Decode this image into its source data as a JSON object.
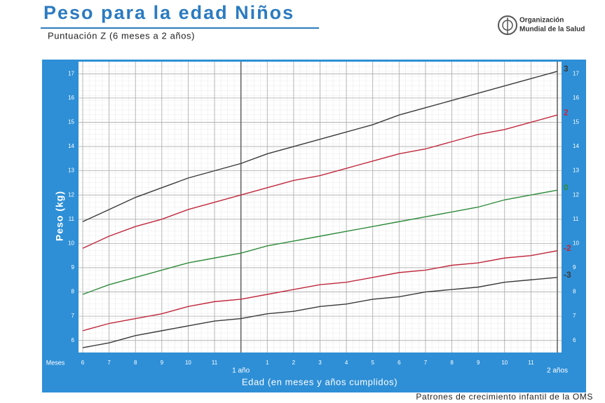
{
  "chart_data": {
    "type": "line",
    "title": "Peso para la edad Niños",
    "subtitle": "Puntuación Z (6 meses a 2 años)",
    "logo_text": [
      "Organización",
      "Mundial de la Salud"
    ],
    "y_label": "Peso (kg)",
    "x_label": "Edad (en meses y años cumplidos)",
    "x_unit_label": "Meses",
    "source": "Patrones de crecimiento infantil de la OMS",
    "x": [
      6,
      7,
      8,
      9,
      10,
      11,
      12,
      13,
      14,
      15,
      16,
      17,
      18,
      19,
      20,
      21,
      22,
      23,
      24
    ],
    "xlim": [
      6,
      24
    ],
    "xticks": [
      6,
      7,
      8,
      9,
      10,
      11,
      {
        "value": 12,
        "label": "1 año"
      },
      {
        "value": 13,
        "label": "1"
      },
      {
        "value": 14,
        "label": "2"
      },
      {
        "value": 15,
        "label": "3"
      },
      {
        "value": 16,
        "label": "4"
      },
      {
        "value": 17,
        "label": "5"
      },
      {
        "value": 18,
        "label": "6"
      },
      {
        "value": 19,
        "label": "7"
      },
      {
        "value": 20,
        "label": "8"
      },
      {
        "value": 21,
        "label": "9"
      },
      {
        "value": 22,
        "label": "10"
      },
      {
        "value": 23,
        "label": "11"
      },
      {
        "value": 24,
        "label": "2 años"
      }
    ],
    "ylim": [
      5.5,
      17.5
    ],
    "yticks": [
      6,
      7,
      8,
      9,
      10,
      11,
      12,
      13,
      14,
      15,
      16,
      17
    ],
    "grid": true,
    "series": [
      {
        "name": "3",
        "color": "#3a3a3a",
        "values": [
          10.9,
          11.4,
          11.9,
          12.3,
          12.7,
          13.0,
          13.3,
          13.7,
          14.0,
          14.3,
          14.6,
          14.9,
          15.3,
          15.6,
          15.9,
          16.2,
          16.5,
          16.8,
          17.1
        ]
      },
      {
        "name": "2",
        "color": "#c0283c",
        "values": [
          9.8,
          10.3,
          10.7,
          11.0,
          11.4,
          11.7,
          12.0,
          12.3,
          12.6,
          12.8,
          13.1,
          13.4,
          13.7,
          13.9,
          14.2,
          14.5,
          14.7,
          15.0,
          15.3
        ]
      },
      {
        "name": "0",
        "color": "#2e8b3a",
        "values": [
          7.9,
          8.3,
          8.6,
          8.9,
          9.2,
          9.4,
          9.6,
          9.9,
          10.1,
          10.3,
          10.5,
          10.7,
          10.9,
          11.1,
          11.3,
          11.5,
          11.8,
          12.0,
          12.2
        ]
      },
      {
        "name": "-2",
        "color": "#c0283c",
        "values": [
          6.4,
          6.7,
          6.9,
          7.1,
          7.4,
          7.6,
          7.7,
          7.9,
          8.1,
          8.3,
          8.4,
          8.6,
          8.8,
          8.9,
          9.1,
          9.2,
          9.4,
          9.5,
          9.7
        ]
      },
      {
        "name": "-3",
        "color": "#3a3a3a",
        "values": [
          5.7,
          5.9,
          6.2,
          6.4,
          6.6,
          6.8,
          6.9,
          7.1,
          7.2,
          7.4,
          7.5,
          7.7,
          7.8,
          8.0,
          8.1,
          8.2,
          8.4,
          8.5,
          8.6
        ]
      }
    ]
  }
}
